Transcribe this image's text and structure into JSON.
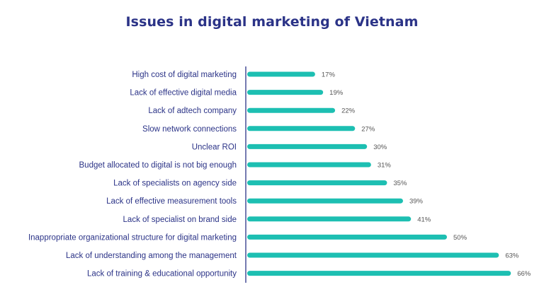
{
  "chart_data": {
    "type": "bar",
    "orientation": "horizontal",
    "title": "Issues in digital marketing of Vietnam",
    "xlabel": "",
    "ylabel": "",
    "grid": false,
    "legend": "none",
    "xlim": [
      0,
      66
    ],
    "value_suffix": "%",
    "categories": [
      "High cost of digital marketing",
      "Lack of effective digital media",
      "Lack of adtech company",
      "Slow network connections",
      "Unclear ROI",
      "Budget allocated to digital is not big enough",
      "Lack of specialists on agency side",
      "Lack of effective measurement tools",
      "Lack of specialist on brand side",
      "Inappropriate organizational structure for digital marketing",
      "Lack of understanding among the management",
      "Lack of training & educational opportunity"
    ],
    "values": [
      17,
      19,
      22,
      27,
      30,
      31,
      35,
      39,
      41,
      50,
      63,
      66
    ],
    "colors": {
      "bar": "#1dbfb2",
      "title": "#2b3387",
      "label": "#2b3387",
      "value": "#555555",
      "axis": "#2b3387"
    }
  }
}
